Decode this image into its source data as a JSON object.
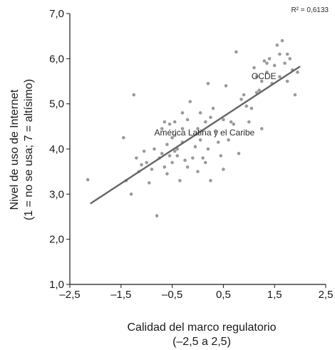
{
  "chart_data": {
    "type": "scatter",
    "title": "",
    "xlabel_line1": "Calidad del marco regulatorio",
    "xlabel_line2": "(–2,5 a 2,5)",
    "ylabel_line1": "Nivel de uso de Internet",
    "ylabel_line2": "(1 = no se usa; 7 = altísimo)",
    "xlim": [
      -2.5,
      2.5
    ],
    "ylim": [
      1.0,
      7.0
    ],
    "x_ticks": [
      -2.5,
      -1.5,
      -0.5,
      0.5,
      1.5,
      2.5
    ],
    "x_tick_labels": [
      "–2,5",
      "–1,5",
      "–0,5",
      "0,5",
      "1,5",
      "2,5"
    ],
    "y_ticks": [
      1,
      2,
      3,
      4,
      5,
      6,
      7
    ],
    "y_tick_labels": [
      "1,0",
      "2,0",
      "3,0",
      "4,0",
      "5,0",
      "6,0",
      "7,0"
    ],
    "grid": false,
    "r_squared_label": "R² = 0,6133",
    "trendline": {
      "x": [
        -2.1,
        2.0
      ],
      "y": [
        2.79,
        5.83
      ]
    },
    "annotations": [
      {
        "text": "América Latina y el Caribe",
        "x": -0.85,
        "y": 4.3
      },
      {
        "text": "OCDE",
        "x": 1.05,
        "y": 5.55
      }
    ],
    "colors": {
      "points": "#9a9a9a",
      "trendline": "#666666",
      "axis": "#1a1a1a"
    },
    "points": [
      [
        -2.15,
        3.32
      ],
      [
        -1.45,
        4.25
      ],
      [
        -1.4,
        3.3
      ],
      [
        -1.3,
        3.0
      ],
      [
        -1.25,
        5.2
      ],
      [
        -1.2,
        3.8
      ],
      [
        -1.15,
        3.5
      ],
      [
        -1.1,
        3.65
      ],
      [
        -1.05,
        3.95
      ],
      [
        -1.0,
        3.7
      ],
      [
        -0.95,
        3.25
      ],
      [
        -0.9,
        3.55
      ],
      [
        -0.85,
        4.0
      ],
      [
        -0.8,
        2.52
      ],
      [
        -0.75,
        3.8
      ],
      [
        -0.7,
        3.9
      ],
      [
        -0.7,
        4.45
      ],
      [
        -0.65,
        3.6
      ],
      [
        -0.65,
        4.6
      ],
      [
        -0.6,
        4.1
      ],
      [
        -0.6,
        3.45
      ],
      [
        -0.55,
        4.55
      ],
      [
        -0.55,
        3.85
      ],
      [
        -0.5,
        4.25
      ],
      [
        -0.5,
        3.7
      ],
      [
        -0.45,
        4.3
      ],
      [
        -0.45,
        4.6
      ],
      [
        -0.45,
        3.95
      ],
      [
        -0.4,
        3.85
      ],
      [
        -0.4,
        4.0
      ],
      [
        -0.35,
        3.3
      ],
      [
        -0.3,
        4.8
      ],
      [
        -0.3,
        4.45
      ],
      [
        -0.3,
        4.15
      ],
      [
        -0.25,
        3.75
      ],
      [
        -0.2,
        4.65
      ],
      [
        -0.2,
        3.6
      ],
      [
        -0.15,
        5.05
      ],
      [
        -0.1,
        3.8
      ],
      [
        -0.05,
        4.05
      ],
      [
        0.0,
        3.5
      ],
      [
        0.0,
        4.45
      ],
      [
        0.05,
        4.8
      ],
      [
        0.05,
        4.2
      ],
      [
        0.1,
        3.8
      ],
      [
        0.15,
        4.6
      ],
      [
        0.15,
        3.7
      ],
      [
        0.2,
        5.45
      ],
      [
        0.2,
        4.0
      ],
      [
        0.25,
        3.3
      ],
      [
        0.25,
        4.7
      ],
      [
        0.3,
        4.9
      ],
      [
        0.35,
        4.4
      ],
      [
        0.4,
        4.15
      ],
      [
        0.45,
        3.85
      ],
      [
        0.5,
        4.65
      ],
      [
        0.5,
        3.55
      ],
      [
        0.55,
        5.4
      ],
      [
        0.6,
        4.2
      ],
      [
        0.65,
        4.6
      ],
      [
        0.7,
        4.55
      ],
      [
        0.75,
        6.15
      ],
      [
        0.8,
        3.9
      ],
      [
        0.85,
        5.1
      ],
      [
        0.9,
        5.2
      ],
      [
        0.95,
        4.95
      ],
      [
        1.0,
        4.6
      ],
      [
        1.05,
        4.9
      ],
      [
        1.1,
        5.8
      ],
      [
        1.15,
        5.6
      ],
      [
        1.2,
        5.3
      ],
      [
        1.25,
        5.5
      ],
      [
        1.25,
        4.45
      ],
      [
        1.3,
        5.95
      ],
      [
        1.35,
        5.7
      ],
      [
        1.4,
        6.0
      ],
      [
        1.45,
        5.45
      ],
      [
        1.5,
        5.85
      ],
      [
        1.55,
        6.3
      ],
      [
        1.6,
        5.6
      ],
      [
        1.65,
        6.4
      ],
      [
        1.7,
        5.9
      ],
      [
        1.75,
        5.5
      ],
      [
        1.8,
        6.0
      ],
      [
        1.85,
        5.75
      ],
      [
        1.9,
        5.2
      ],
      [
        1.95,
        5.7
      ],
      [
        1.15,
        5.25
      ],
      [
        1.35,
        5.9
      ],
      [
        1.6,
        6.1
      ],
      [
        1.75,
        6.1
      ]
    ]
  }
}
